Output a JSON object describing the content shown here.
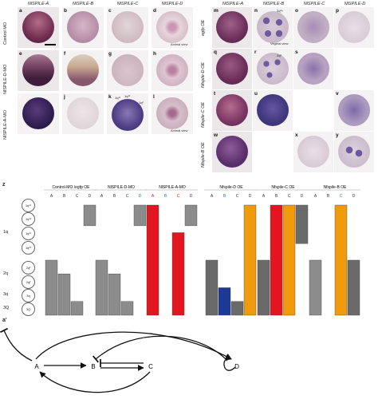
{
  "panel_grid": {
    "left_headers": [
      "NlSPILE-A",
      "NlSPILE-B",
      "NlSPILE-C",
      "NlSPILE-D"
    ],
    "right_headers": [
      "NlSPILE-A",
      "NlSPILE-B",
      "NlSPILE-C",
      "NlSPILE-D"
    ],
    "left_rows": [
      "Control MO",
      "NlSPILE-D-MO",
      "NlSPILE-A-MO"
    ],
    "right_rows": [
      "egfp OE",
      "Nfspile-D OE",
      "Nfspile-C OE",
      "Nfspile-B OE"
    ],
    "letters": [
      "a",
      "b",
      "c",
      "d",
      "e",
      "f",
      "g",
      "h",
      "i",
      "j",
      "k",
      "l",
      "m",
      "n",
      "o",
      "p",
      "q",
      "r",
      "s",
      "t",
      "u",
      "v",
      "w",
      "x",
      "y"
    ],
    "animal_view": "Animal view",
    "vegetal_view": "Vegetal view",
    "ann_2q2": "2q²+",
    "ann_2q2_r": "2q²",
    "ann_1q": "1q¹¹",
    "ann_1q12": "1q¹²",
    "ann_1q2": "1q²"
  },
  "z": {
    "label": "z",
    "cells": [
      "1q¹¹",
      "1q¹²",
      "1q²¹",
      "1q²²",
      "2q¹",
      "2q²",
      "3q",
      "3Q"
    ],
    "row_groups": [
      "1q",
      "2q",
      "3q",
      "3Q"
    ],
    "groups": [
      "Control-MO /egfp OE",
      "NlSPILE-D-MO",
      "NlSPILE-A-MO",
      "Nfspile-D OE",
      "Nfspile-C OE",
      "Nfspile-B OE"
    ],
    "cols": [
      "A",
      "B",
      "C",
      "D"
    ],
    "colors": {
      "gray": "#8c8c8c",
      "dark": "#6a6a6a",
      "red": "#e3151e",
      "blue": "#1c3a93",
      "orange": "#f29a0e"
    }
  },
  "chart_data": {
    "type": "bar",
    "categories": [
      "A",
      "B",
      "C",
      "D"
    ],
    "series": [
      {
        "name": "Control-MO /egfp OE",
        "values": [
          4,
          3,
          1,
          1
        ]
      },
      {
        "name": "NlSPILE-D-MO",
        "values": [
          4,
          3,
          1,
          1
        ]
      },
      {
        "name": "NlSPILE-A-MO",
        "values": [
          8,
          0,
          6,
          1
        ]
      },
      {
        "name": "Nfspile-D OE",
        "values": [
          4,
          2,
          1,
          8
        ]
      },
      {
        "name": "Nfspile-C OE",
        "values": [
          4,
          8,
          8,
          1
        ]
      },
      {
        "name": "Nfspile-B OE",
        "values": [
          4,
          0,
          8,
          4
        ]
      }
    ]
  },
  "a_prime": {
    "label": "a'",
    "nodes": [
      "A",
      "B",
      "C",
      "D"
    ]
  }
}
